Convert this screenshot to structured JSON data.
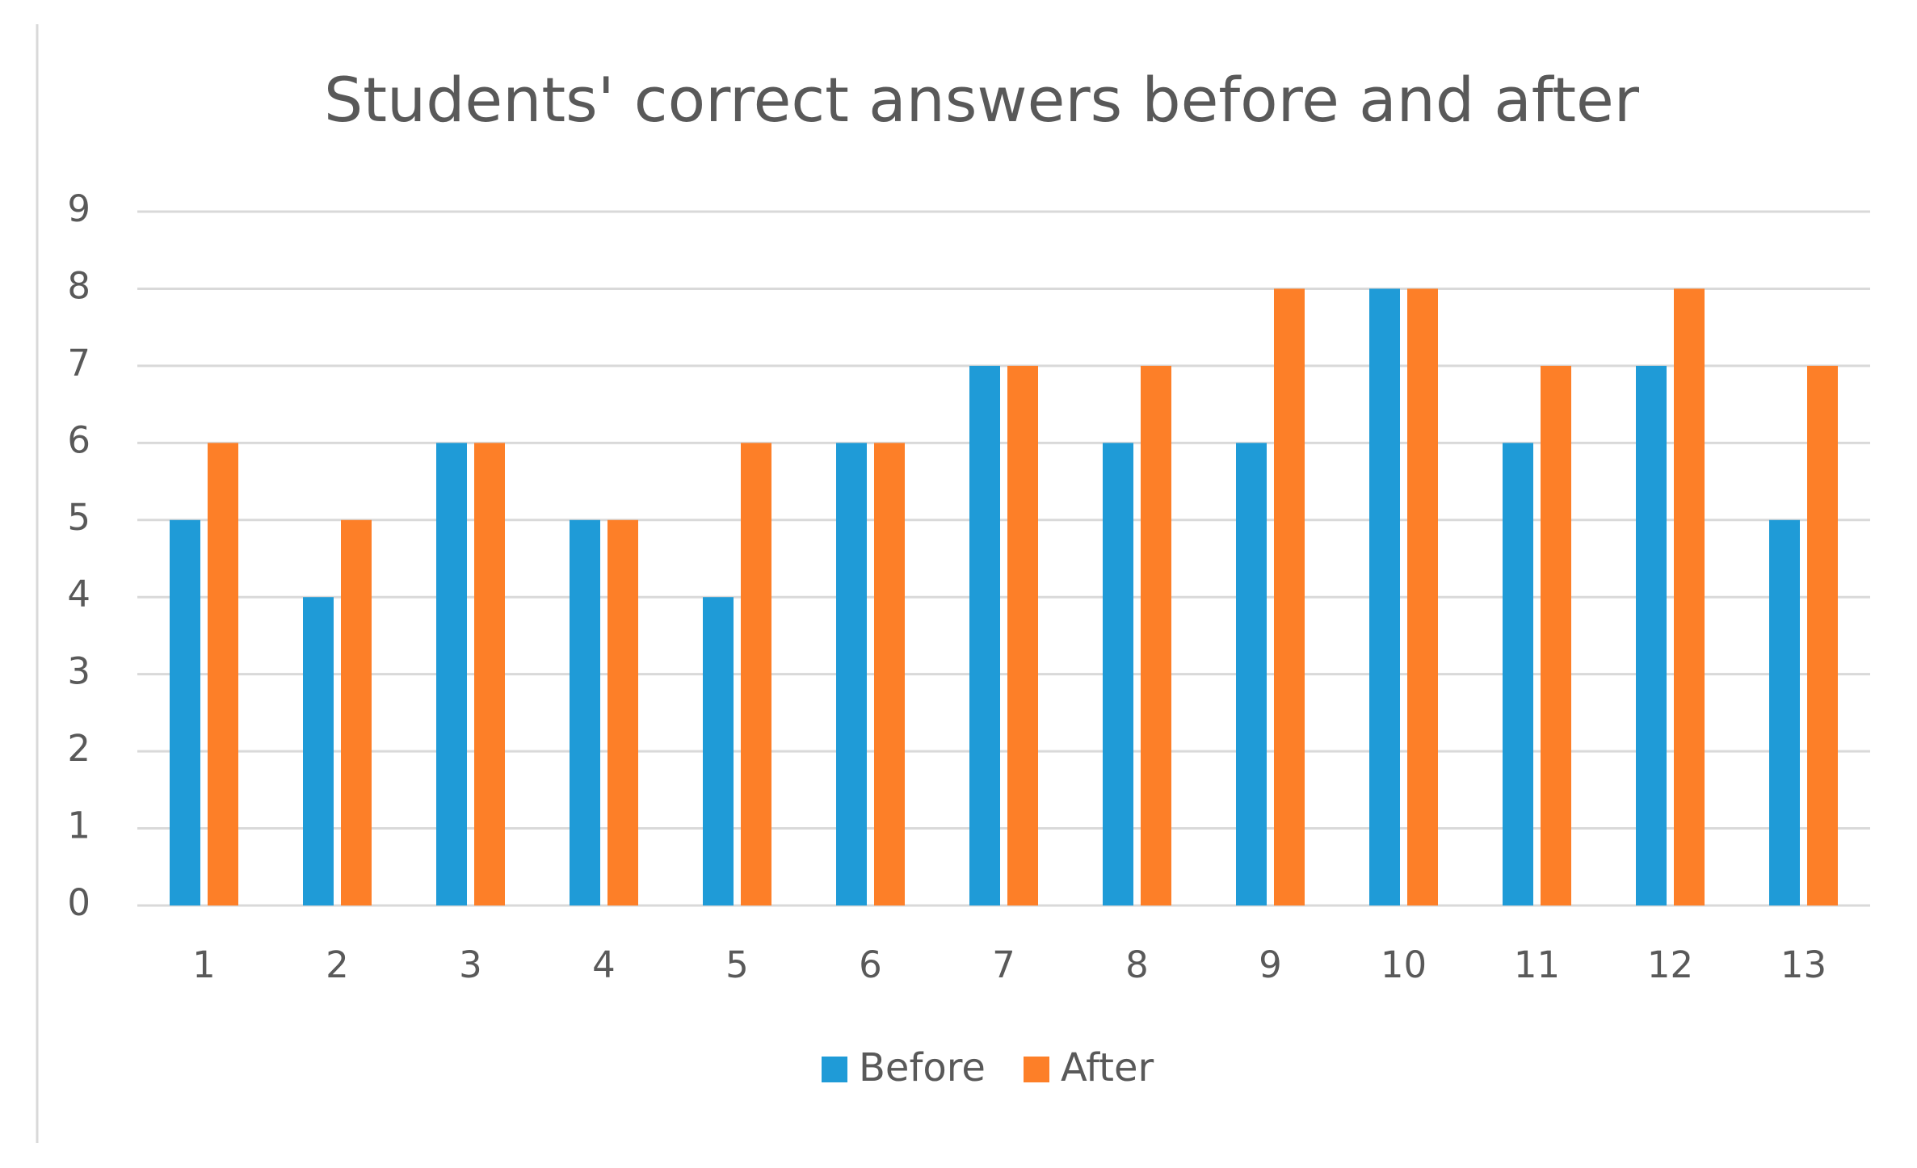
{
  "chart_data": {
    "type": "bar",
    "title": "Students' correct answers before and after",
    "categories": [
      "1",
      "2",
      "3",
      "4",
      "5",
      "6",
      "7",
      "8",
      "9",
      "10",
      "11",
      "12",
      "13"
    ],
    "series": [
      {
        "name": "Before",
        "color": "#1f9bd7",
        "values": [
          5,
          4,
          6,
          5,
          4,
          6,
          7,
          6,
          6,
          8,
          6,
          7,
          5
        ]
      },
      {
        "name": "After",
        "color": "#fd7f28",
        "values": [
          6,
          5,
          6,
          5,
          6,
          6,
          7,
          7,
          8,
          8,
          7,
          8,
          7
        ]
      }
    ],
    "ylim": [
      0,
      9
    ],
    "yticks": [
      0,
      1,
      2,
      3,
      4,
      5,
      6,
      7,
      8,
      9
    ],
    "grid": true,
    "legend": "bottom"
  }
}
